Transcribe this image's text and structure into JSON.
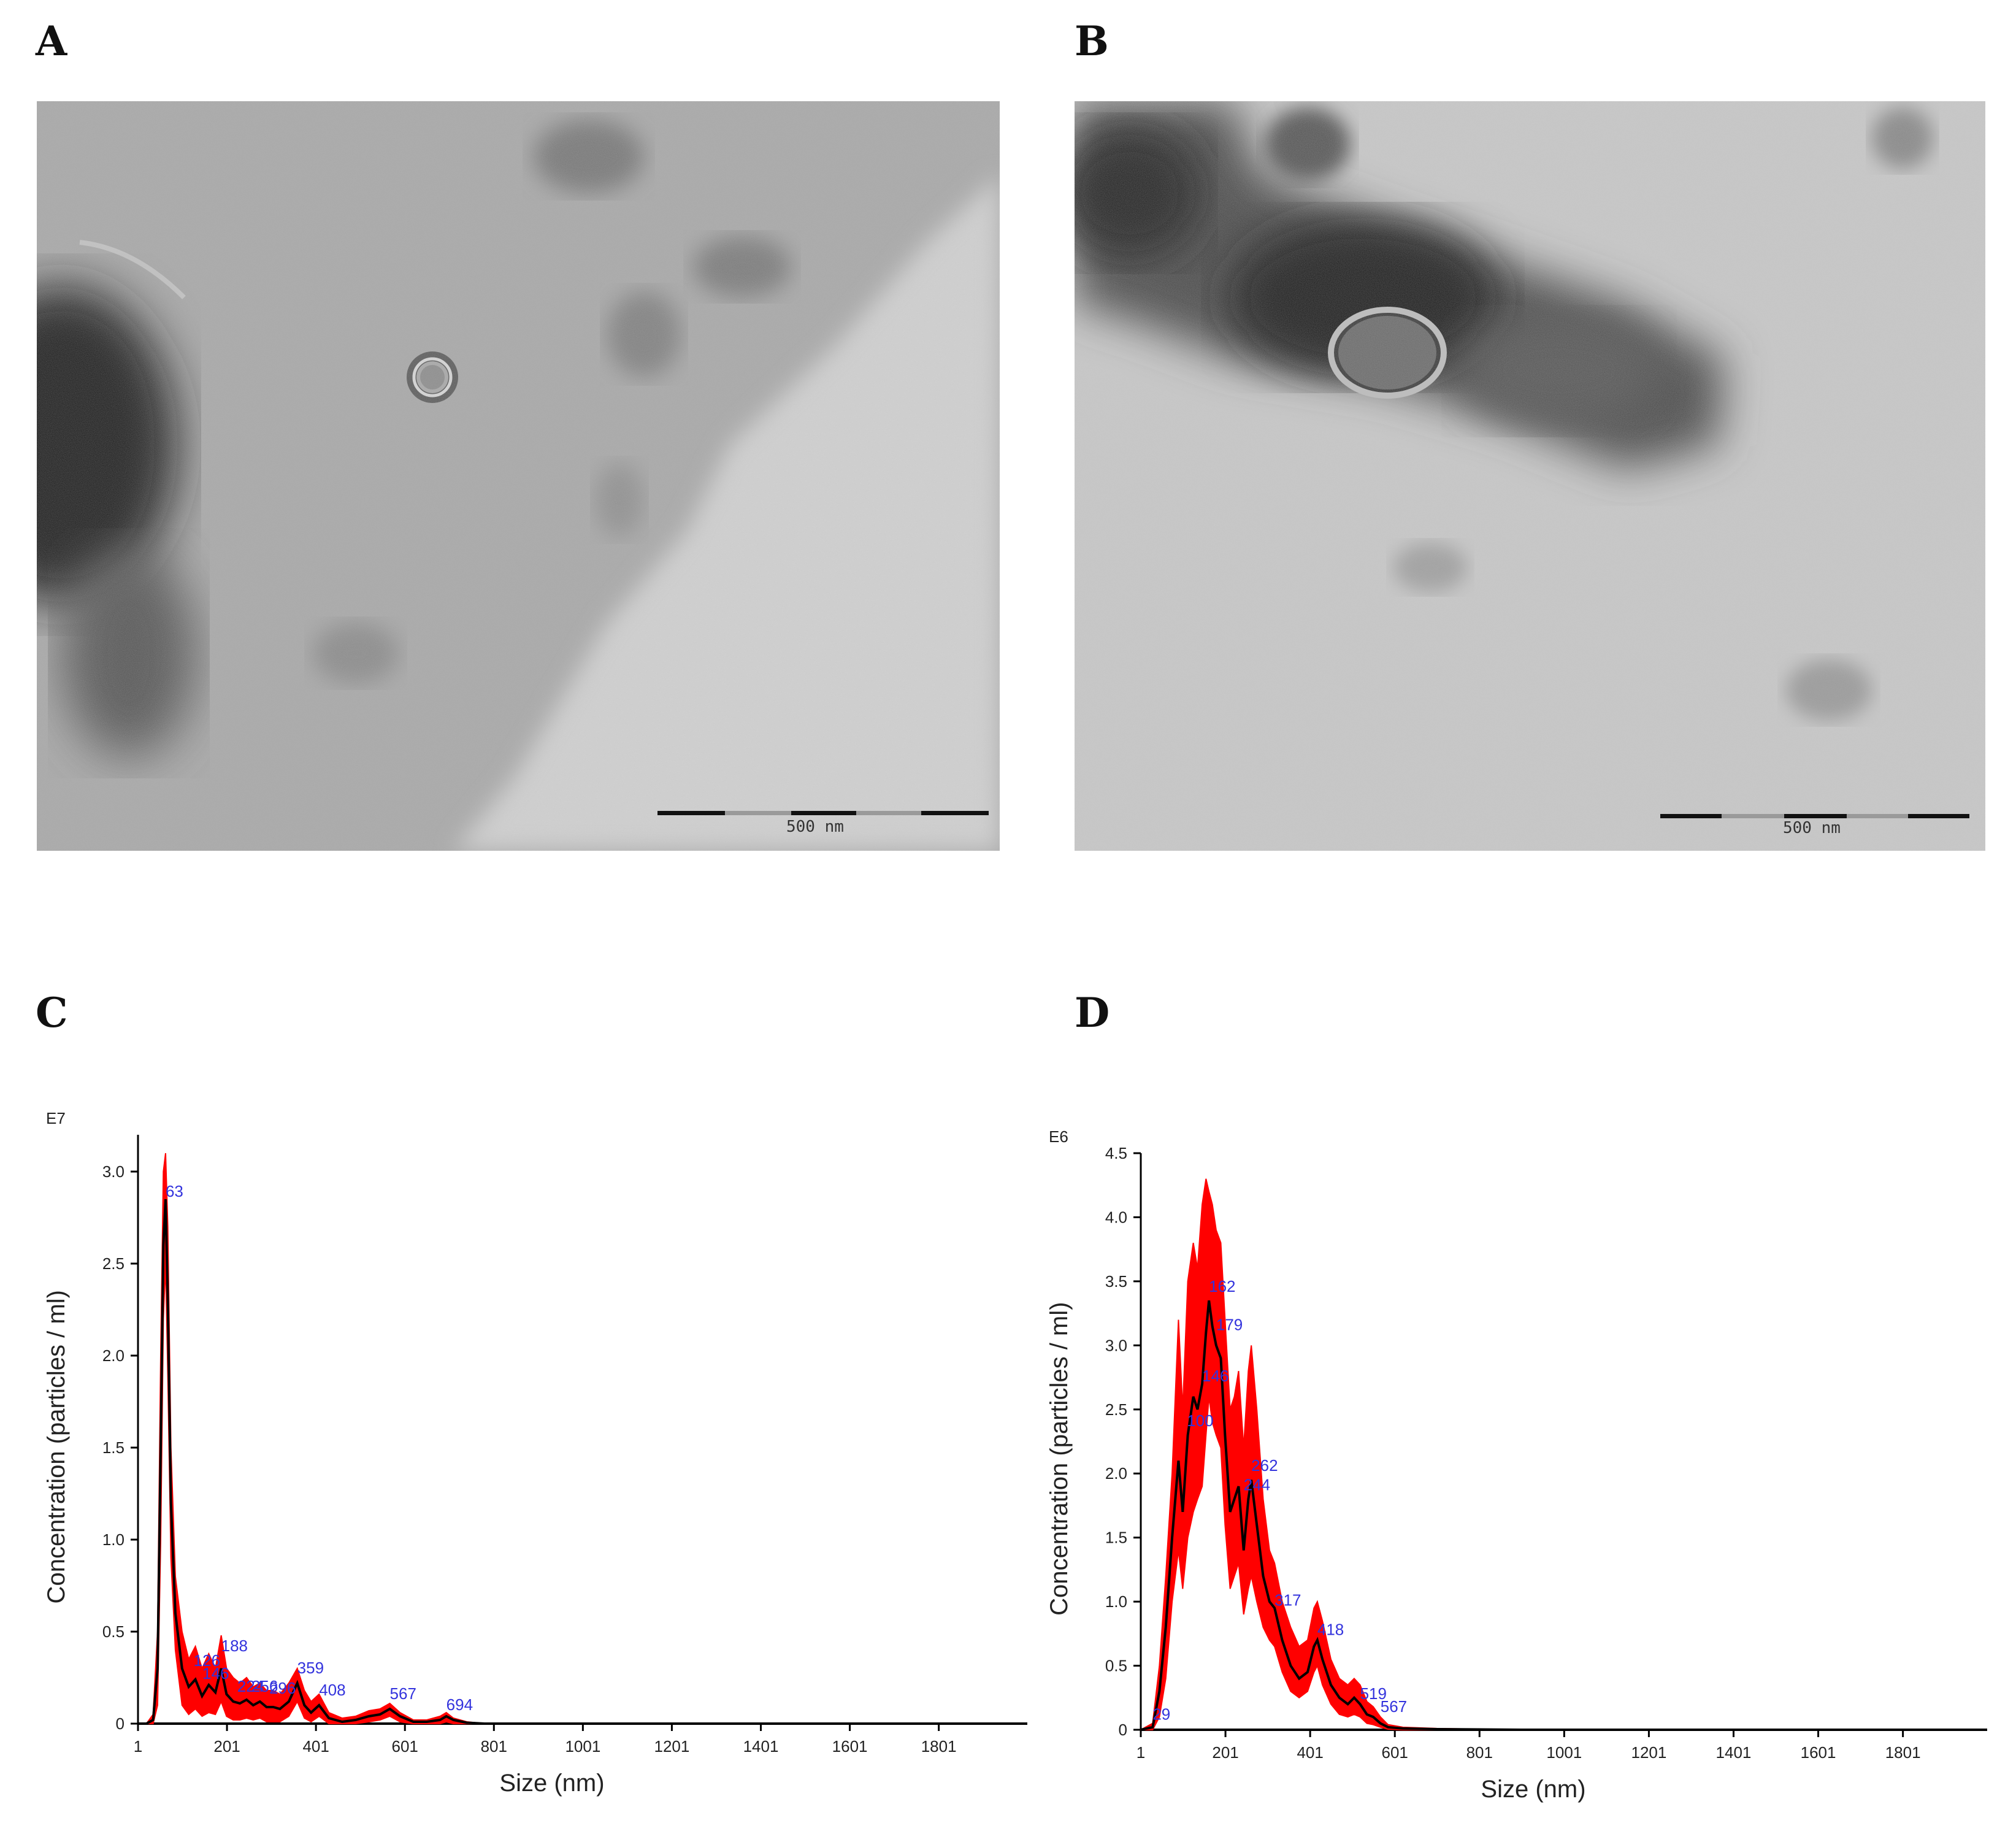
{
  "panels": [
    {
      "letter": "A"
    },
    {
      "letter": "B"
    },
    {
      "letter": "C"
    },
    {
      "letter": "D"
    }
  ],
  "micrographs": [
    {
      "scale_bar_label": "500 nm"
    },
    {
      "scale_bar_label": "500 nm"
    }
  ],
  "chart_data": [
    {
      "type": "line",
      "panel": "C",
      "xlabel": "Size (nm)",
      "ylabel": "Concentration (particles / ml)",
      "exponent_label": "E7",
      "x_ticks": [
        "1",
        "201",
        "401",
        "601",
        "801",
        "1001",
        "1201",
        "1401",
        "1601",
        "1801"
      ],
      "y_ticks": [
        "0",
        "0.5",
        "1.0",
        "1.5",
        "2.0",
        "2.5",
        "3.0"
      ],
      "xlim": [
        1,
        2000
      ],
      "ylim": [
        0,
        3.2
      ],
      "series": [
        {
          "color": "#000000",
          "x": [
            1,
            20,
            35,
            45,
            52,
            58,
            63,
            68,
            75,
            85,
            100,
            115,
            130,
            145,
            160,
            175,
            188,
            200,
            215,
            230,
            245,
            260,
            275,
            290,
            305,
            320,
            340,
            359,
            375,
            390,
            408,
            430,
            460,
            490,
            520,
            545,
            567,
            590,
            620,
            650,
            680,
            694,
            710,
            740,
            780,
            900,
            1100,
            1400,
            1700,
            2000
          ],
          "y": [
            0,
            0,
            0.02,
            0.3,
            1.5,
            2.6,
            2.85,
            2.3,
            1.2,
            0.6,
            0.3,
            0.2,
            0.24,
            0.15,
            0.21,
            0.17,
            0.3,
            0.16,
            0.12,
            0.11,
            0.13,
            0.1,
            0.12,
            0.09,
            0.09,
            0.08,
            0.12,
            0.22,
            0.1,
            0.06,
            0.1,
            0.03,
            0.01,
            0.02,
            0.04,
            0.05,
            0.08,
            0.04,
            0.01,
            0.01,
            0.02,
            0.04,
            0.02,
            0.005,
            0,
            0,
            0,
            0,
            0,
            0
          ]
        },
        {
          "color": "#ff0000",
          "x": [
            1,
            20,
            35,
            45,
            52,
            58,
            63,
            68,
            75,
            85,
            100,
            115,
            130,
            145,
            160,
            175,
            188,
            200,
            215,
            230,
            245,
            260,
            275,
            290,
            305,
            320,
            340,
            359,
            375,
            390,
            408,
            430,
            460,
            490,
            520,
            545,
            567,
            590,
            620,
            650,
            680,
            694,
            710,
            740,
            780,
            900,
            1100,
            1400,
            1700,
            2000
          ],
          "y_upper": [
            0,
            0,
            0.05,
            0.5,
            2.0,
            3.0,
            3.1,
            2.7,
            1.5,
            0.8,
            0.5,
            0.35,
            0.42,
            0.3,
            0.38,
            0.3,
            0.48,
            0.3,
            0.25,
            0.22,
            0.25,
            0.2,
            0.22,
            0.18,
            0.18,
            0.16,
            0.22,
            0.3,
            0.18,
            0.12,
            0.16,
            0.06,
            0.03,
            0.04,
            0.07,
            0.08,
            0.11,
            0.06,
            0.02,
            0.02,
            0.04,
            0.06,
            0.03,
            0.01,
            0,
            0,
            0,
            0,
            0,
            0
          ],
          "y_lower": [
            0,
            0,
            0,
            0.1,
            1.0,
            2.2,
            2.5,
            1.9,
            0.9,
            0.4,
            0.1,
            0.05,
            0.08,
            0.04,
            0.06,
            0.05,
            0.12,
            0.04,
            0.02,
            0.02,
            0.03,
            0.02,
            0.03,
            0.01,
            0.01,
            0.01,
            0.04,
            0.12,
            0.03,
            0.01,
            0.04,
            0,
            0,
            0,
            0.01,
            0.02,
            0.04,
            0.01,
            0,
            0,
            0,
            0.01,
            0,
            0,
            0,
            0,
            0,
            0,
            0,
            0
          ]
        }
      ],
      "peak_labels": [
        {
          "text": "63",
          "x": 63,
          "y": 2.85
        },
        {
          "text": "188",
          "x": 188,
          "y": 0.38
        },
        {
          "text": "126",
          "x": 126,
          "y": 0.3
        },
        {
          "text": "146",
          "x": 146,
          "y": 0.23
        },
        {
          "text": "224",
          "x": 224,
          "y": 0.16
        },
        {
          "text": "256",
          "x": 256,
          "y": 0.16
        },
        {
          "text": "296",
          "x": 296,
          "y": 0.15
        },
        {
          "text": "359",
          "x": 359,
          "y": 0.26
        },
        {
          "text": "408",
          "x": 408,
          "y": 0.14
        },
        {
          "text": "567",
          "x": 567,
          "y": 0.12
        },
        {
          "text": "694",
          "x": 694,
          "y": 0.06
        }
      ]
    },
    {
      "type": "line",
      "panel": "D",
      "xlabel": "Size (nm)",
      "ylabel": "Concentration (particles / ml)",
      "exponent_label": "E6",
      "x_ticks": [
        "1",
        "201",
        "401",
        "601",
        "801",
        "1001",
        "1201",
        "1401",
        "1601",
        "1801"
      ],
      "y_ticks": [
        "0",
        "0.5",
        "1.0",
        "1.5",
        "2.0",
        "2.5",
        "3.0",
        "3.5",
        "4.0",
        "4.5"
      ],
      "xlim": [
        1,
        2000
      ],
      "ylim": [
        0,
        4.5
      ],
      "series": [
        {
          "color": "#000000",
          "x": [
            1,
            29,
            45,
            60,
            75,
            90,
            100,
            112,
            125,
            135,
            146,
            155,
            162,
            170,
            179,
            190,
            200,
            212,
            222,
            232,
            244,
            255,
            262,
            275,
            290,
            305,
            317,
            335,
            355,
            375,
            395,
            410,
            418,
            430,
            450,
            470,
            490,
            505,
            519,
            535,
            550,
            567,
            585,
            620,
            700,
            900,
            1200,
            1500,
            1800,
            2000
          ],
          "y": [
            0,
            0.02,
            0.3,
            0.8,
            1.5,
            2.1,
            1.7,
            2.3,
            2.6,
            2.5,
            2.7,
            3.1,
            3.35,
            3.15,
            3.0,
            2.9,
            2.3,
            1.7,
            1.8,
            1.9,
            1.4,
            1.8,
            1.95,
            1.6,
            1.2,
            1.0,
            0.95,
            0.7,
            0.5,
            0.4,
            0.45,
            0.65,
            0.7,
            0.55,
            0.35,
            0.25,
            0.2,
            0.25,
            0.2,
            0.12,
            0.1,
            0.05,
            0.02,
            0.01,
            0.005,
            0,
            0,
            0,
            0,
            0
          ],
          "y_upper_note": "shaded band"
        },
        {
          "color": "#ff0000",
          "x": [
            1,
            29,
            45,
            60,
            75,
            90,
            100,
            112,
            125,
            135,
            146,
            155,
            162,
            170,
            179,
            190,
            200,
            212,
            222,
            232,
            244,
            255,
            262,
            275,
            290,
            305,
            317,
            335,
            355,
            375,
            395,
            410,
            418,
            430,
            450,
            470,
            490,
            505,
            519,
            535,
            550,
            567,
            585,
            620,
            700,
            900,
            1200,
            1500,
            1800,
            2000
          ],
          "y_upper": [
            0,
            0.05,
            0.5,
            1.2,
            2.0,
            3.2,
            2.5,
            3.5,
            3.8,
            3.6,
            4.1,
            4.3,
            4.2,
            4.1,
            3.9,
            3.8,
            3.2,
            2.5,
            2.6,
            2.8,
            2.2,
            2.8,
            3.0,
            2.5,
            1.8,
            1.4,
            1.3,
            1.0,
            0.8,
            0.65,
            0.7,
            0.95,
            1.0,
            0.85,
            0.55,
            0.4,
            0.35,
            0.4,
            0.35,
            0.22,
            0.18,
            0.1,
            0.04,
            0.02,
            0.01,
            0,
            0,
            0,
            0,
            0
          ],
          "y_lower": [
            0,
            0,
            0.1,
            0.4,
            1.0,
            1.4,
            1.1,
            1.5,
            1.7,
            1.8,
            1.9,
            2.3,
            2.6,
            2.4,
            2.3,
            2.2,
            1.6,
            1.1,
            1.2,
            1.3,
            0.9,
            1.1,
            1.2,
            1.0,
            0.8,
            0.7,
            0.65,
            0.45,
            0.3,
            0.25,
            0.3,
            0.45,
            0.5,
            0.35,
            0.2,
            0.12,
            0.1,
            0.12,
            0.1,
            0.05,
            0.04,
            0.02,
            0.005,
            0,
            0,
            0,
            0,
            0,
            0,
            0
          ]
        }
      ],
      "peak_labels": [
        {
          "text": "29",
          "x": 29,
          "y": 0.06
        },
        {
          "text": "146",
          "x": 146,
          "y": 2.7
        },
        {
          "text": "162",
          "x": 162,
          "y": 3.4
        },
        {
          "text": "179",
          "x": 179,
          "y": 3.1
        },
        {
          "text": "100",
          "x": 110,
          "y": 2.35
        },
        {
          "text": "244",
          "x": 244,
          "y": 1.85
        },
        {
          "text": "262",
          "x": 262,
          "y": 2.0
        },
        {
          "text": "317",
          "x": 317,
          "y": 0.95
        },
        {
          "text": "418",
          "x": 418,
          "y": 0.72
        },
        {
          "text": "519",
          "x": 519,
          "y": 0.22
        },
        {
          "text": "567",
          "x": 567,
          "y": 0.12
        }
      ]
    }
  ]
}
